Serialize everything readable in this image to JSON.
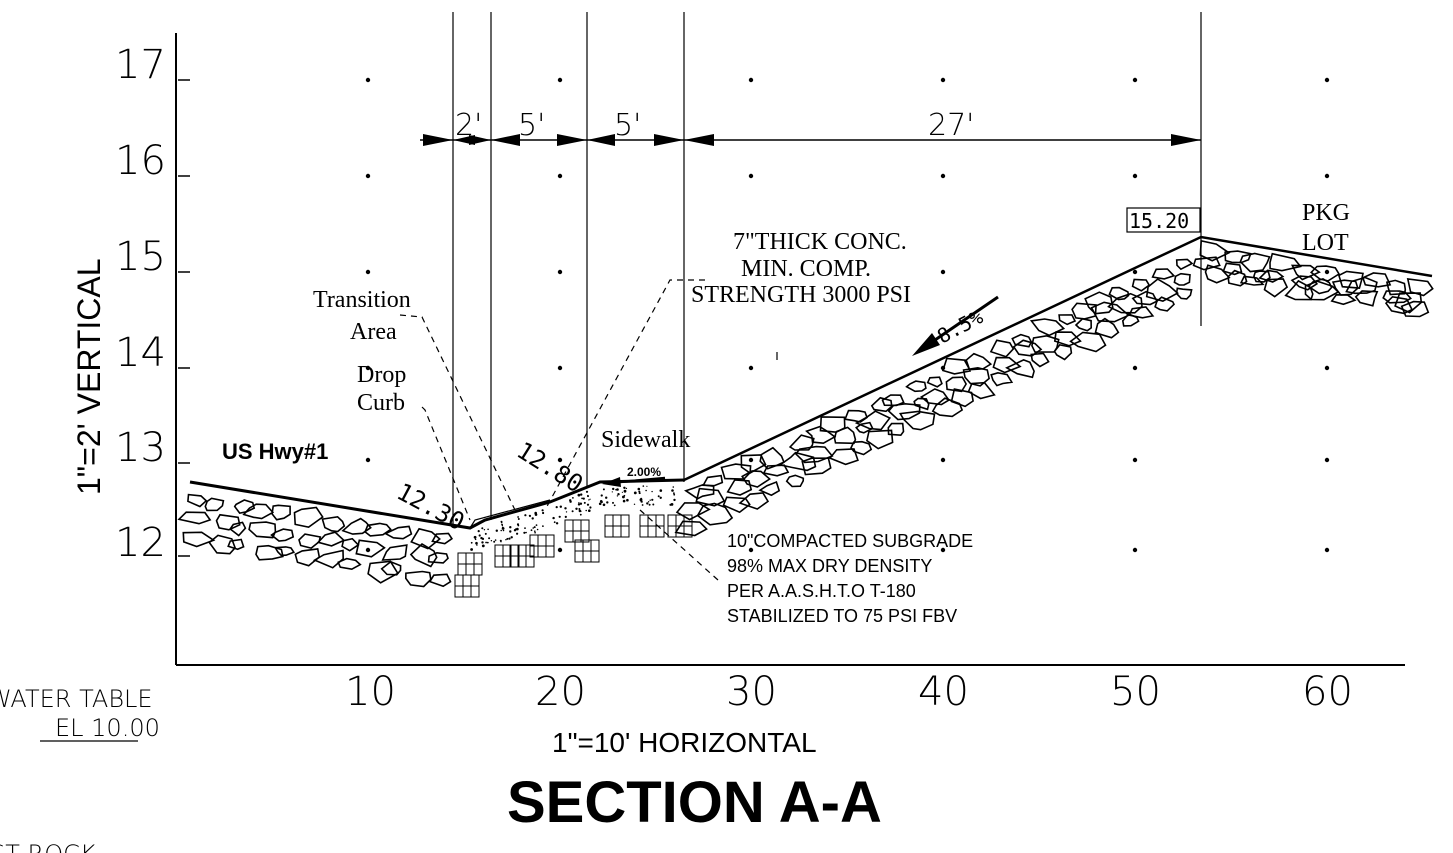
{
  "title": "SECTION  A-A",
  "horizontal_scale": "1\"=10' HORIZONTAL",
  "vertical_scale": "1\"=2' VERTICAL",
  "y_ticks": [
    "17",
    "16",
    "15",
    "14",
    "13",
    "12"
  ],
  "x_ticks": [
    "10",
    "20",
    "30",
    "40",
    "50",
    "60"
  ],
  "dimensions": [
    "2'",
    "5'",
    "5'",
    "27'"
  ],
  "labels": {
    "concrete_1": "7\"THICK  CONC.",
    "concrete_2": "MIN.  COMP.",
    "concrete_3": "STRENGTH  3000  PSI",
    "transition_1": "Transition",
    "transition_2": "Area",
    "drop_1": "Drop",
    "drop_2": "Curb",
    "highway": "US Hwy#1",
    "sidewalk": "Sidewalk",
    "sidewalk_slope": "2.00%",
    "slope": "8.5%",
    "elev_top": "15.20",
    "elev_curb": "12.30",
    "elev_walk": "12.80",
    "pkg_1": "PKG",
    "pkg_2": "LOT",
    "subgrade_1": "10\"COMPACTED  SUBGRADE",
    "subgrade_2": "98% MAX DRY DENSITY",
    "subgrade_3": "PER A.A.S.H.T.O  T-180",
    "subgrade_4": "STABILIZED TO 75 PSI FBV",
    "water_1": "WATER  TABLE",
    "water_2": "EL  10.00",
    "bottom_cut": "ST  ROCK"
  }
}
